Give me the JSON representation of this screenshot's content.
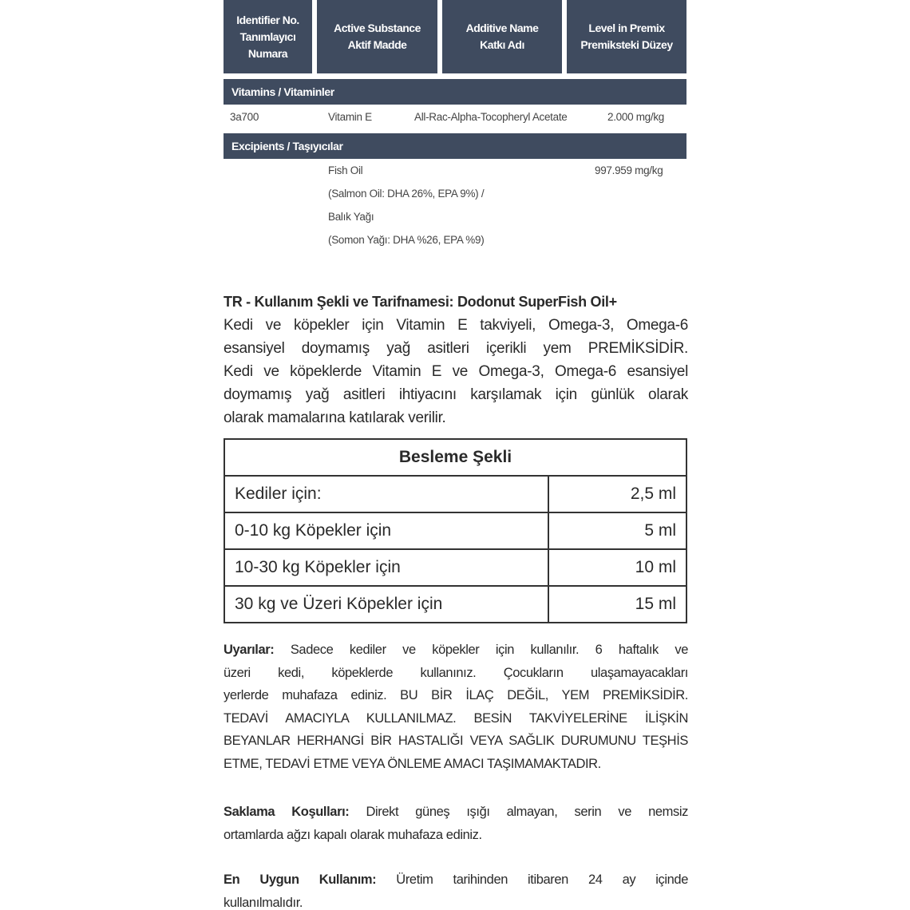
{
  "composition_table": {
    "headers": [
      [
        "Identifier No.",
        "Tanımlayıcı",
        "Numara"
      ],
      [
        "Active Substance",
        "Aktif Madde"
      ],
      [
        "Additive Name",
        "Katkı Adı"
      ],
      [
        "Level in Premix",
        "Premiksteki Düzey"
      ]
    ],
    "sections": [
      {
        "title": "Vitamins / Vitaminler",
        "rows": [
          {
            "id": "3a700",
            "substance": [
              "Vitamin E"
            ],
            "additive": "All-Rac-Alpha-Tocopheryl Acetate",
            "level": "2.000 mg/kg"
          }
        ]
      },
      {
        "title": "Excipients / Taşıyıcılar",
        "rows": [
          {
            "substance": [
              "Fish Oil",
              "(Salmon Oil: DHA 26%, EPA 9%) /",
              "Balık Yağı",
              "(Somon Yağı: DHA %26, EPA %9)"
            ],
            "level": "997.959 mg/kg"
          }
        ]
      }
    ]
  },
  "usage": {
    "title": "TR - Kullanım Şekli ve Tarifnamesi: Dodonut SuperFish Oil+",
    "lines": [
      "Kedi ve köpekler için Vitamin E takviyeli, Omega-3, Omega-6",
      "esansiyel doymamış yağ asitleri içerikli yem PREMİKSİDİR.",
      "Kedi ve köpeklerde Vitamin E ve Omega-3, Omega-6 esansiyel",
      "doymamış yağ asitleri ihtiyacını karşılamak için günlük olarak",
      "olarak mamalarına katılarak verilir."
    ]
  },
  "feeding_table": {
    "title": "Besleme Şekli",
    "rows": [
      [
        "Kediler için:",
        "2,5 ml"
      ],
      [
        "0-10 kg Köpekler için",
        "5 ml"
      ],
      [
        "10-30 kg  Köpekler için",
        "10 ml"
      ],
      [
        "30 kg ve Üzeri Köpekler için",
        "15 ml"
      ]
    ]
  },
  "notes": [
    {
      "label": "Uyarılar:",
      "lines": [
        " Sadece kediler ve köpekler için kullanılır. 6 haftalık ve",
        "üzeri kedi, köpeklerde kullanınız. Çocukların ulaşamayacakları",
        "yerlerde muhafaza ediniz. BU BİR İLAÇ DEĞİL, YEM PREMİKSİDİR.",
        "TEDAVİ AMACIYLA KULLANILMAZ. BESİN TAKVİYELERİNE İLİŞKİN",
        "BEYANLAR HERHANGİ BİR HASTALIĞI VEYA SAĞLIK DURUMUNU TEŞHİS",
        "ETME, TEDAVİ ETME VEYA ÖNLEME AMACI TAŞIMAMAKTADIR."
      ]
    },
    {
      "label": "Saklama Koşulları:",
      "lines": [
        " Direkt güneş ışığı almayan, serin ve nemsiz",
        "ortamlarda ağzı kapalı olarak muhafaza ediniz."
      ]
    },
    {
      "label": "En Uygun Kullanım:",
      "lines": [
        " Üretim tarihinden itibaren 24 ay içinde",
        "kullanılmalıdır."
      ]
    }
  ]
}
